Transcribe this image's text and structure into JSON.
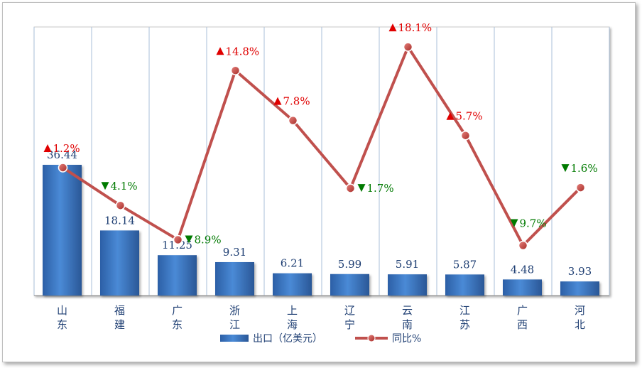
{
  "chart_data": {
    "type": "bar",
    "categories": [
      "山东",
      "福建",
      "广东",
      "浙江",
      "上海",
      "辽宁",
      "云南",
      "江苏",
      "广西",
      "河北"
    ],
    "series": [
      {
        "name": "出口（亿美元）",
        "type": "bar",
        "values": [
          36.44,
          18.14,
          11.25,
          9.31,
          6.21,
          5.99,
          5.91,
          5.87,
          4.48,
          3.93
        ],
        "color": "#3a75c4"
      },
      {
        "name": "同比%",
        "type": "line",
        "values": [
          1.2,
          -4.1,
          -8.9,
          14.8,
          7.8,
          -1.7,
          18.1,
          5.7,
          -9.7,
          -1.6
        ],
        "labels": [
          "1.2%",
          "4.1%",
          "8.9%",
          "14.8%",
          "7.8%",
          "1.7%",
          "18.1%",
          "5.7%",
          "9.7%",
          "1.6%"
        ],
        "color": "#c0504d"
      }
    ],
    "up_color": "#e00000",
    "down_color": "#007a00",
    "grid": "vertical",
    "legend": "bottom"
  }
}
